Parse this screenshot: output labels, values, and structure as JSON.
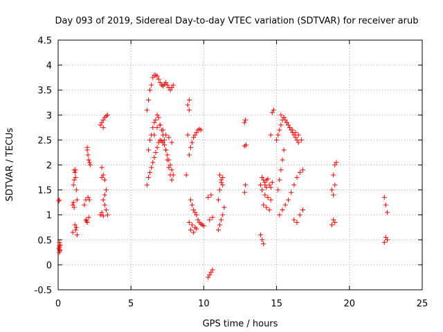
{
  "chart_data": {
    "type": "scatter",
    "title": "Day 093 of 2019, Sidereal Day-to-day VTEC variation (SDTVAR) for receiver arub",
    "xlabel": "GPS time / hours",
    "ylabel": "SDTVAR / TECUs",
    "xlim": [
      0,
      25
    ],
    "ylim": [
      -0.5,
      4.5
    ],
    "x_ticks": [
      0,
      5,
      10,
      15,
      20,
      25
    ],
    "y_ticks": [
      -0.5,
      0,
      0.5,
      1,
      1.5,
      2,
      2.5,
      3,
      3.5,
      4,
      4.5
    ],
    "x_tick_labels": [
      "0",
      "5",
      "10",
      "15",
      "20",
      "25"
    ],
    "y_tick_labels": [
      "-0.5",
      "0",
      "0.5",
      "1",
      "1.5",
      "2",
      "2.5",
      "3",
      "3.5",
      "4",
      "4.5"
    ],
    "grid": true,
    "marker": "+",
    "color": "#ff0000",
    "series": [
      {
        "name": "SDTVAR",
        "x": [
          0.05,
          0.07,
          0.1,
          0.1,
          0.12,
          0.14,
          0.05,
          0.08,
          0.1,
          0.12,
          1.0,
          1.05,
          1.1,
          1.15,
          1.2,
          1.25,
          1.3,
          1.05,
          1.1,
          1.2,
          1.3,
          1.0,
          1.15,
          1.25,
          1.1,
          1.2,
          1.8,
          1.9,
          2.0,
          2.05,
          2.1,
          2.15,
          2.2,
          1.9,
          2.0,
          2.1,
          1.95,
          2.05,
          2.0,
          2.15,
          2.9,
          3.0,
          3.1,
          3.2,
          3.3,
          3.4,
          2.9,
          3.0,
          3.1,
          3.0,
          3.1,
          3.2,
          3.3,
          3.0,
          3.1,
          3.2,
          3.3,
          3.4,
          3.1,
          3.2,
          6.1,
          6.2,
          6.3,
          6.4,
          6.5,
          6.6,
          6.7,
          6.8,
          6.9,
          7.0,
          7.1,
          7.2,
          7.3,
          7.4,
          7.5,
          7.6,
          7.7,
          7.8,
          6.2,
          6.3,
          6.4,
          6.5,
          6.6,
          6.7,
          6.8,
          6.9,
          7.0,
          7.1,
          7.2,
          7.3,
          7.4,
          7.5,
          7.6,
          7.7,
          7.8,
          7.9,
          6.1,
          6.2,
          6.3,
          6.4,
          6.5,
          6.6,
          6.7,
          6.8,
          6.9,
          7.0,
          7.1,
          7.2,
          7.3,
          7.4,
          7.5,
          7.6,
          7.7,
          7.8,
          7.9,
          6.6,
          6.8,
          7.0,
          7.2,
          7.4,
          7.6,
          7.8,
          8.8,
          8.9,
          9.0,
          8.9,
          9.0,
          9.1,
          9.2,
          9.3,
          9.4,
          9.5,
          9.0,
          9.1,
          9.2,
          9.3,
          9.4,
          9.5,
          9.6,
          9.7,
          9.8,
          9.0,
          9.2,
          9.4,
          9.6,
          9.8,
          10.0,
          9.1,
          9.3,
          9.5,
          9.7,
          9.9,
          10.3,
          10.4,
          10.5,
          10.6,
          10.3,
          10.5,
          10.4,
          10.6,
          11.0,
          11.1,
          11.2,
          11.3,
          11.1,
          11.2,
          11.3,
          11.0,
          11.1,
          11.2,
          11.3,
          11.4,
          12.8,
          12.85,
          12.9,
          12.8,
          12.85,
          12.8,
          13.9,
          14.0,
          14.1,
          14.2,
          14.3,
          14.4,
          14.5,
          14.6,
          14.7,
          14.0,
          14.2,
          14.4,
          14.6,
          14.1,
          14.3,
          14.5,
          13.9,
          14.0,
          14.1,
          14.2,
          14.3,
          14.6,
          14.7,
          14.8,
          15.0,
          15.1,
          15.2,
          15.3,
          15.4,
          15.5,
          15.6,
          15.7,
          15.8,
          15.9,
          16.0,
          16.1,
          16.2,
          16.3,
          16.4,
          16.5,
          15.1,
          15.2,
          15.3,
          15.4,
          15.5,
          15.2,
          15.4,
          15.6,
          15.8,
          16.0,
          16.2,
          16.4,
          16.6,
          16.8,
          15.3,
          15.5,
          15.7,
          15.9,
          16.1,
          16.3,
          16.5,
          16.7,
          16.2,
          16.4,
          16.6,
          16.8,
          18.8,
          18.9,
          19.0,
          19.1,
          18.9,
          19.0,
          18.8,
          18.9,
          19.0,
          22.4,
          22.5,
          22.6,
          22.5,
          22.4,
          22.6
        ],
        "y": [
          1.28,
          1.3,
          0.45,
          0.35,
          0.28,
          0.4,
          0.32,
          0.25,
          0.38,
          0.3,
          1.2,
          1.6,
          1.9,
          1.85,
          1.75,
          1.5,
          1.3,
          1.25,
          1.15,
          0.7,
          0.6,
          0.65,
          0.8,
          0.75,
          1.7,
          1.9,
          1.2,
          1.3,
          2.3,
          2.2,
          2.1,
          2.05,
          2.0,
          0.9,
          0.85,
          0.95,
          0.88,
          1.35,
          2.35,
          1.3,
          2.8,
          2.85,
          2.9,
          2.95,
          2.98,
          3.0,
          1.0,
          1.05,
          0.98,
          1.75,
          1.8,
          1.7,
          1.5,
          1.95,
          1.3,
          1.2,
          1.1,
          1.0,
          2.75,
          1.4,
          1.6,
          2.3,
          2.5,
          2.6,
          2.75,
          2.85,
          2.9,
          3.0,
          2.95,
          2.8,
          2.7,
          2.6,
          2.5,
          2.3,
          2.1,
          1.95,
          1.8,
          1.7,
          1.75,
          1.85,
          1.95,
          2.05,
          2.15,
          2.25,
          2.35,
          2.45,
          2.5,
          2.48,
          2.45,
          2.4,
          2.3,
          2.2,
          2.1,
          2.0,
          1.9,
          1.8,
          3.1,
          3.3,
          3.5,
          3.6,
          3.75,
          3.8,
          3.8,
          3.78,
          3.72,
          3.65,
          3.6,
          3.58,
          3.62,
          3.65,
          3.6,
          3.55,
          3.5,
          3.55,
          3.6,
          2.6,
          2.75,
          2.8,
          2.7,
          2.6,
          2.55,
          2.45,
          1.8,
          2.6,
          3.3,
          3.2,
          3.1,
          1.3,
          1.2,
          1.1,
          1.05,
          1.0,
          2.2,
          2.35,
          2.45,
          2.55,
          2.6,
          2.65,
          2.7,
          2.72,
          2.7,
          0.85,
          0.8,
          0.75,
          0.9,
          0.82,
          0.78,
          0.7,
          0.65,
          0.72,
          0.85,
          0.8,
          -0.25,
          -0.2,
          -0.15,
          -0.1,
          1.35,
          1.4,
          0.9,
          0.95,
          1.3,
          1.5,
          1.65,
          1.75,
          1.8,
          1.7,
          1.6,
          0.7,
          0.8,
          0.9,
          1.0,
          1.15,
          2.85,
          2.9,
          2.4,
          2.38,
          1.6,
          1.45,
          1.6,
          1.75,
          1.7,
          1.65,
          1.7,
          1.72,
          1.6,
          1.55,
          1.65,
          1.5,
          1.4,
          1.35,
          1.3,
          1.2,
          1.15,
          1.1,
          0.6,
          0.5,
          0.42,
          1.6,
          1.55,
          2.6,
          3.05,
          3.1,
          2.5,
          2.6,
          2.7,
          2.8,
          2.9,
          2.95,
          2.9,
          2.85,
          2.8,
          2.75,
          2.7,
          2.65,
          2.6,
          2.55,
          2.5,
          2.45,
          1.5,
          1.7,
          1.9,
          2.1,
          2.3,
          1.0,
          1.1,
          1.2,
          1.3,
          1.45,
          1.6,
          1.75,
          1.85,
          1.9,
          3.0,
          2.95,
          2.85,
          2.75,
          2.7,
          2.65,
          2.6,
          2.5,
          0.9,
          0.85,
          1.0,
          1.1,
          1.5,
          1.8,
          2.0,
          2.05,
          0.9,
          0.85,
          0.8,
          1.4,
          1.6,
          1.35,
          1.2,
          1.05,
          0.55,
          0.45,
          0.5
        ]
      }
    ]
  }
}
